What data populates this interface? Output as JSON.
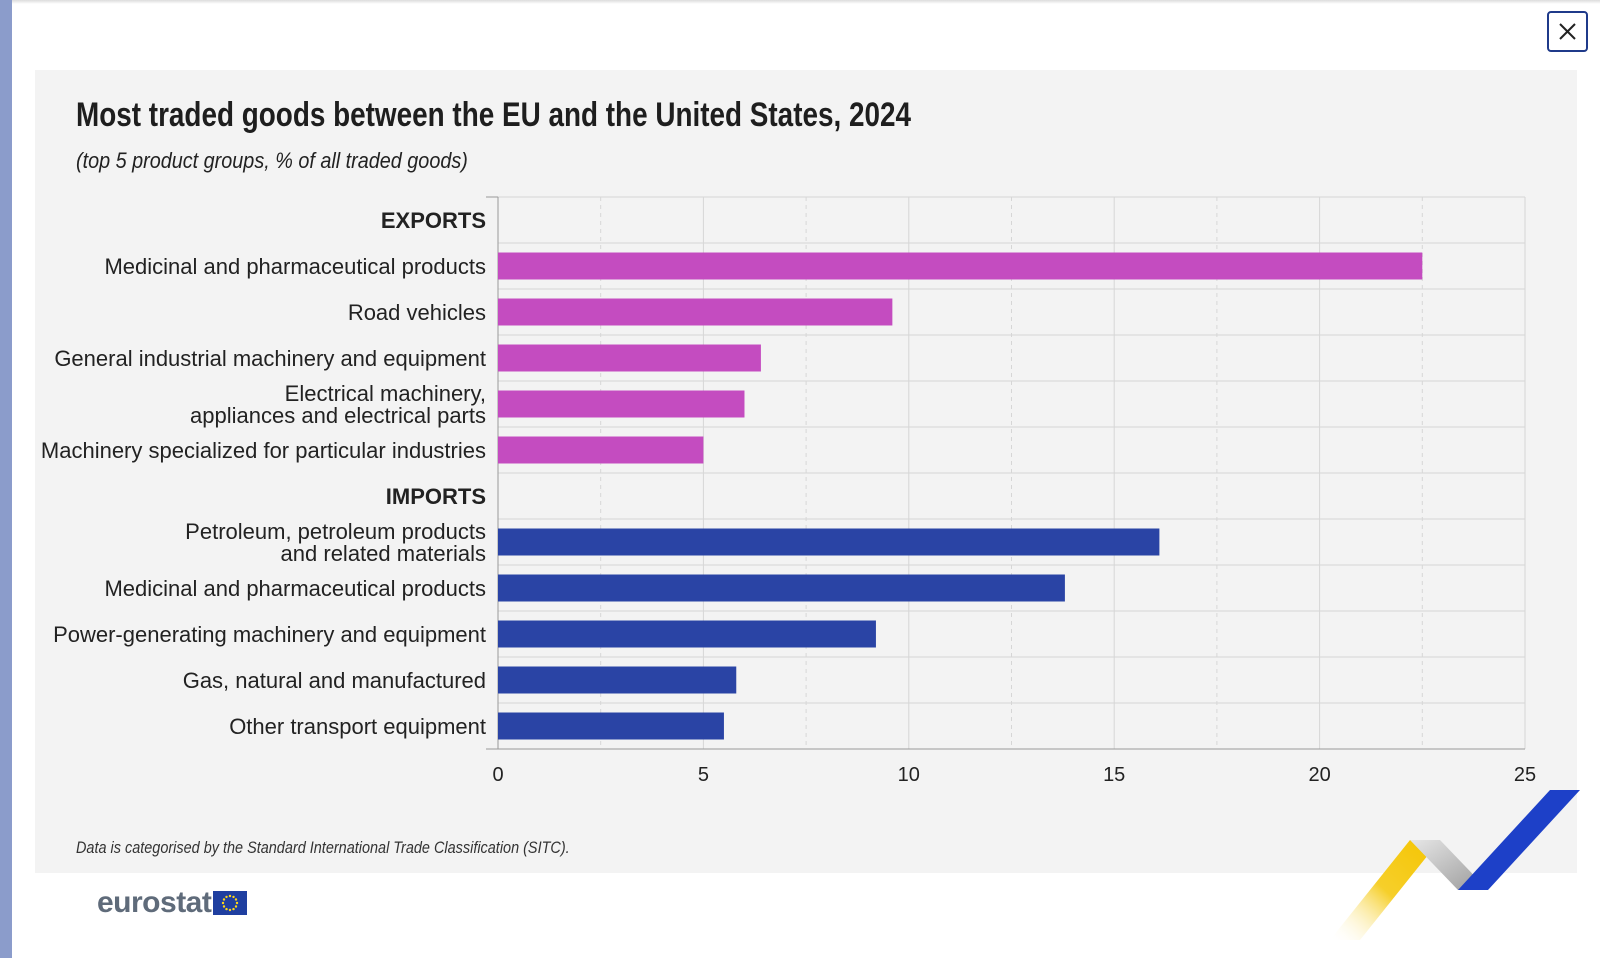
{
  "ui": {
    "close_icon": "close-icon",
    "logo_text": "eurostat",
    "logo_icon": "eu-flag-icon"
  },
  "colors": {
    "exports": "#c44cc0",
    "imports": "#2a44a5",
    "panel": "#f3f3f3",
    "grid": "#d6d6d6"
  },
  "chart_data": {
    "type": "bar",
    "orientation": "horizontal",
    "title": "Most traded goods between the EU and the United States, 2024",
    "subtitle": "(top 5 product groups, % of all traded goods)",
    "footnote": "Data is categorised by the Standard International Trade Classification (SITC).",
    "xlim": [
      0,
      25
    ],
    "xticks": [
      0,
      5,
      10,
      15,
      20,
      25
    ],
    "grid": true,
    "groups": [
      {
        "name": "EXPORTS",
        "color": "#c44cc0",
        "items": [
          {
            "label": [
              "Medicinal and pharmaceutical products"
            ],
            "value": 22.5
          },
          {
            "label": [
              "Road vehicles"
            ],
            "value": 9.6
          },
          {
            "label": [
              "General industrial machinery and equipment"
            ],
            "value": 6.4
          },
          {
            "label": [
              "Electrical machinery,",
              "appliances and electrical parts"
            ],
            "value": 6.0
          },
          {
            "label": [
              "Machinery specialized for particular industries"
            ],
            "value": 5.0
          }
        ]
      },
      {
        "name": "IMPORTS",
        "color": "#2a44a5",
        "items": [
          {
            "label": [
              "Petroleum, petroleum products",
              "and related materials"
            ],
            "value": 16.1
          },
          {
            "label": [
              "Medicinal and pharmaceutical products"
            ],
            "value": 13.8
          },
          {
            "label": [
              "Power-generating machinery and equipment"
            ],
            "value": 9.2
          },
          {
            "label": [
              "Gas, natural and manufactured"
            ],
            "value": 5.8
          },
          {
            "label": [
              "Other transport equipment"
            ],
            "value": 5.5
          }
        ]
      }
    ]
  }
}
